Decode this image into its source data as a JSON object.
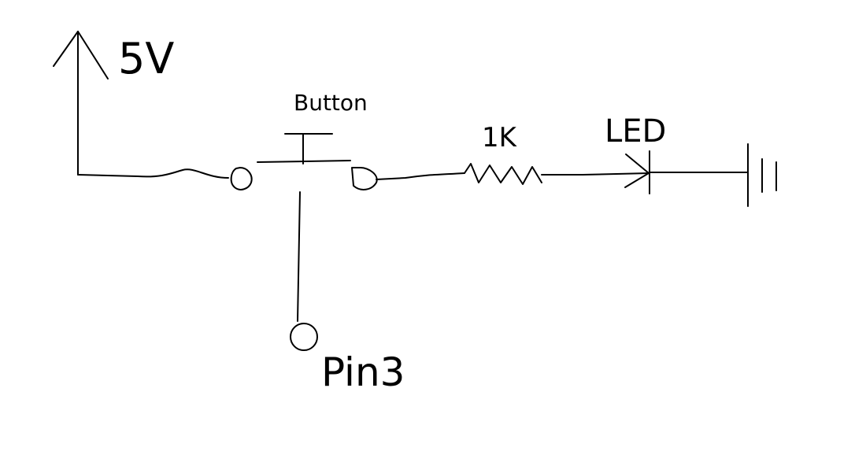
{
  "diagram": {
    "labels": {
      "supply": "5V",
      "button": "Button",
      "resistor": "1K",
      "led": "LED",
      "pin": "Pin3"
    },
    "colors": {
      "background": "#ffffff",
      "ink": "#000000"
    }
  }
}
